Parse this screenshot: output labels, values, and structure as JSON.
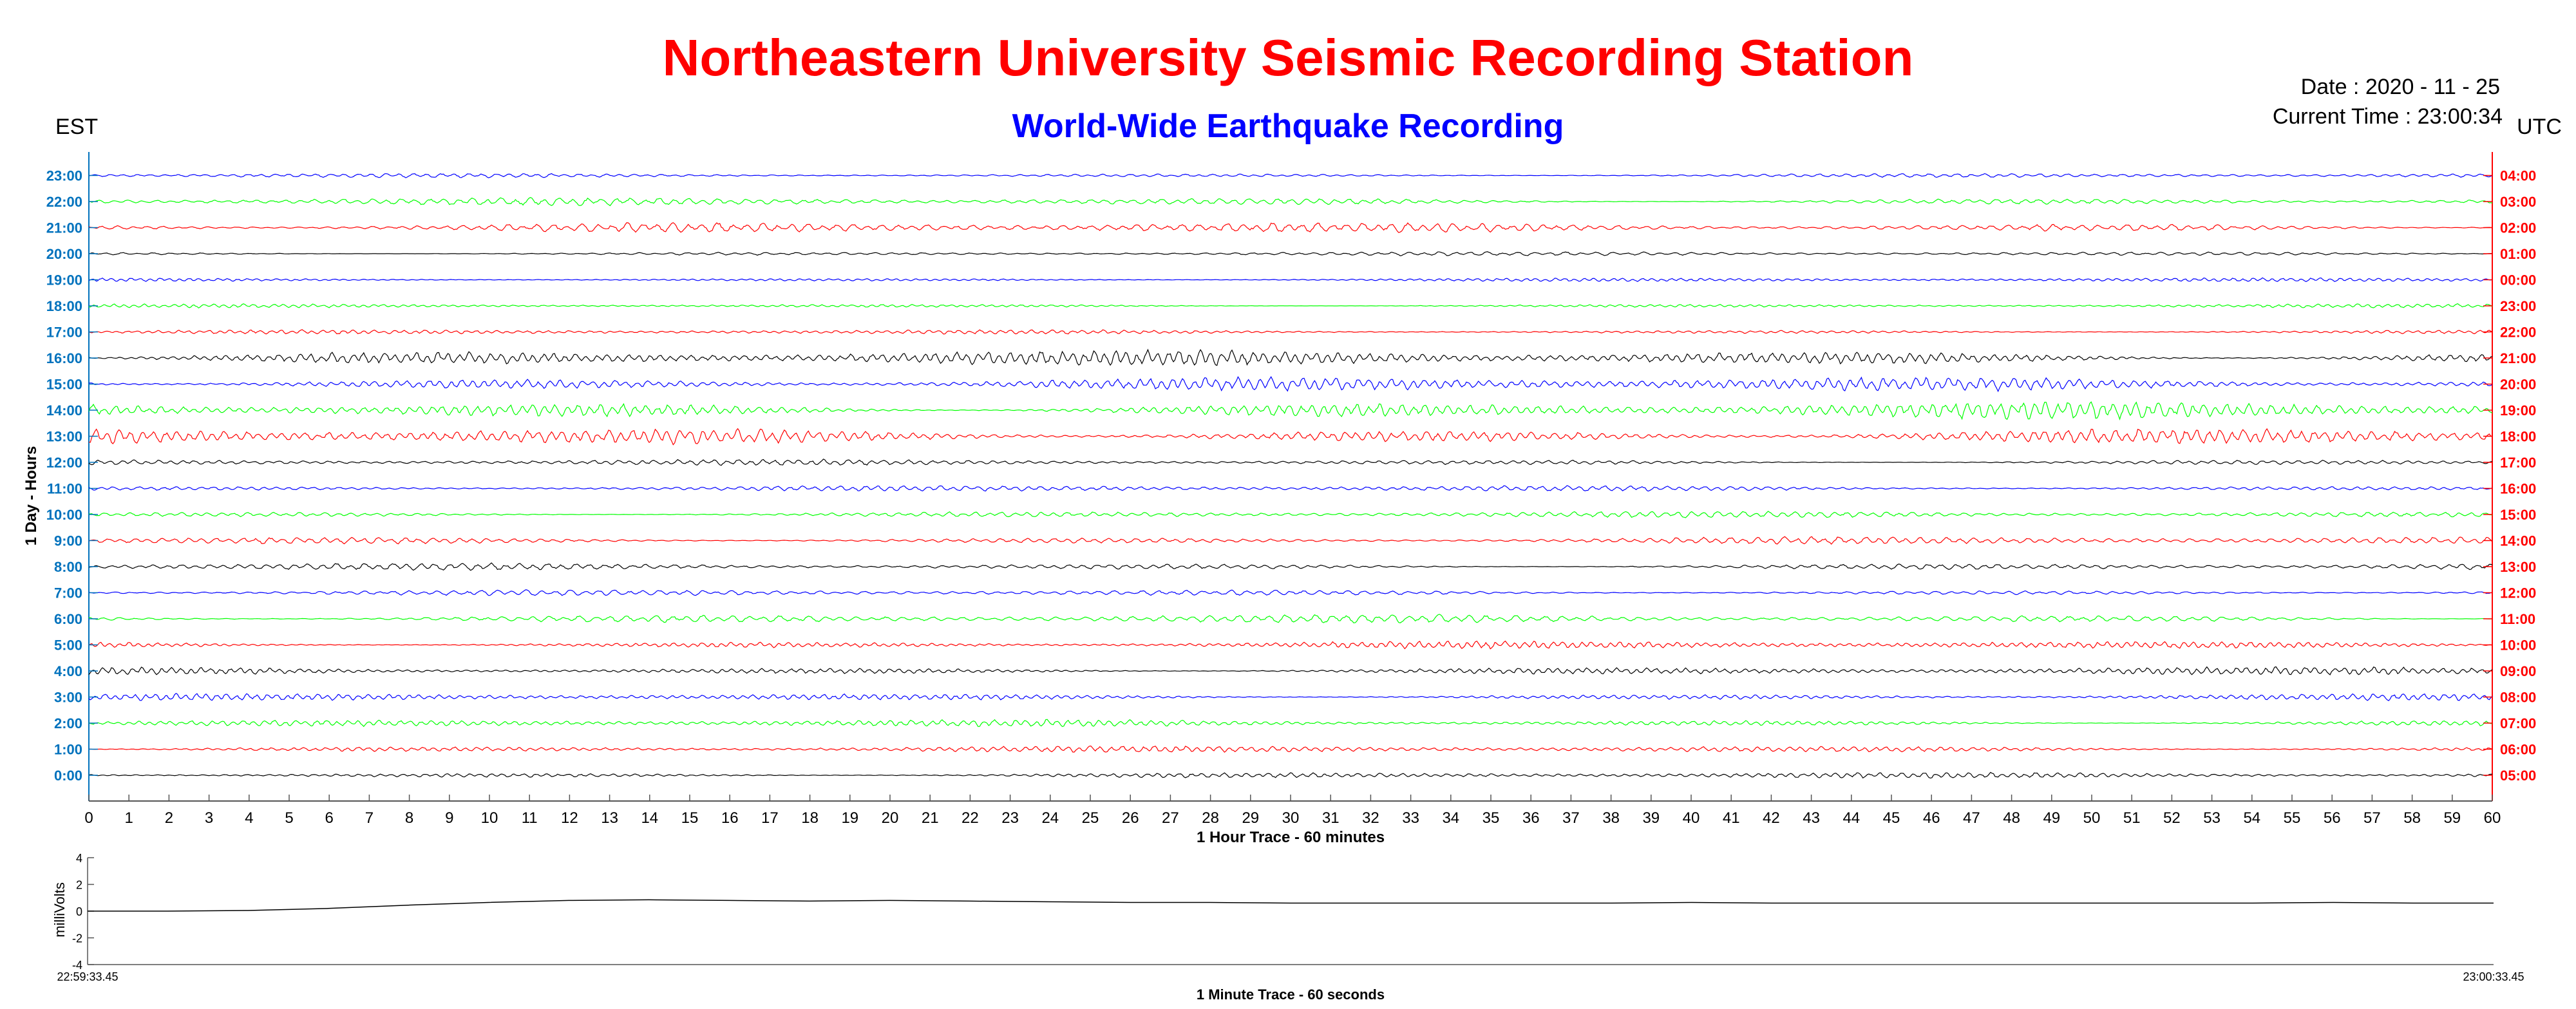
{
  "header": {
    "title": "Northeastern University Seismic Recording Station",
    "subtitle": "World-Wide Earthquake Recording",
    "date_text": "Date : 2020 - 11 - 25",
    "time_text": "Current Time : 23:00:34",
    "est_label": "EST",
    "utc_label": "UTC"
  },
  "colors": {
    "title": "#ff0000",
    "subtitle": "#0000ff",
    "est_ticks": "#0072bd",
    "utc_ticks": "#ff0000",
    "traces": [
      "#000000",
      "#ff0000",
      "#00ff00",
      "#0000ff"
    ]
  },
  "chart_data": [
    {
      "type": "line",
      "name": "helicorder-1-day",
      "ylabel": "1 Day - Hours",
      "xlabel": "1 Hour Trace - 60 minutes",
      "xlim": [
        0,
        60
      ],
      "x_ticks": [
        0,
        1,
        2,
        3,
        4,
        5,
        6,
        7,
        8,
        9,
        10,
        11,
        12,
        13,
        14,
        15,
        16,
        17,
        18,
        19,
        20,
        21,
        22,
        23,
        24,
        25,
        26,
        27,
        28,
        29,
        30,
        31,
        32,
        33,
        34,
        35,
        36,
        37,
        38,
        39,
        40,
        41,
        42,
        43,
        44,
        45,
        46,
        47,
        48,
        49,
        50,
        51,
        52,
        53,
        54,
        55,
        56,
        57,
        58,
        59,
        60
      ],
      "est_hours": [
        "0:00",
        "1:00",
        "2:00",
        "3:00",
        "4:00",
        "5:00",
        "6:00",
        "7:00",
        "8:00",
        "9:00",
        "10:00",
        "11:00",
        "12:00",
        "13:00",
        "14:00",
        "15:00",
        "16:00",
        "17:00",
        "18:00",
        "19:00",
        "20:00",
        "21:00",
        "22:00",
        "23:00"
      ],
      "utc_hours": [
        "05:00",
        "06:00",
        "07:00",
        "08:00",
        "09:00",
        "10:00",
        "11:00",
        "12:00",
        "13:00",
        "14:00",
        "15:00",
        "16:00",
        "17:00",
        "18:00",
        "19:00",
        "20:00",
        "21:00",
        "22:00",
        "23:00",
        "00:00",
        "01:00",
        "02:00",
        "03:00",
        "04:00"
      ],
      "trace_rows": 24,
      "trace_color_cycle": [
        "black",
        "red",
        "green",
        "blue"
      ],
      "relative_amplitude": [
        0.45,
        0.5,
        0.55,
        0.55,
        0.6,
        0.6,
        0.65,
        0.45,
        0.55,
        0.6,
        0.5,
        0.45,
        0.45,
        1.3,
        1.4,
        1.1,
        1.2,
        0.35,
        0.3,
        0.3,
        0.3,
        0.8,
        0.6,
        0.35
      ],
      "grid": false
    },
    {
      "type": "line",
      "name": "1-minute-trace",
      "ylabel": "milliVolts",
      "xlabel": "1 Minute Trace  - 60 seconds",
      "ylim": [
        -4,
        4
      ],
      "y_ticks": [
        -4,
        -2,
        0,
        2,
        4
      ],
      "x_start_label": "22:59:33.45",
      "x_end_label": "23:00:33.45",
      "x": [
        0,
        2,
        4,
        6,
        8,
        10,
        12,
        14,
        16,
        18,
        20,
        22,
        24,
        26,
        28,
        30,
        32,
        34,
        36,
        38,
        40,
        42,
        44,
        46,
        48,
        50,
        52,
        54,
        56,
        58,
        60
      ],
      "values": [
        0.0,
        0.0,
        0.05,
        0.2,
        0.45,
        0.65,
        0.8,
        0.85,
        0.8,
        0.75,
        0.8,
        0.75,
        0.7,
        0.65,
        0.65,
        0.6,
        0.6,
        0.6,
        0.6,
        0.6,
        0.65,
        0.6,
        0.6,
        0.6,
        0.6,
        0.6,
        0.6,
        0.6,
        0.65,
        0.6,
        0.6
      ]
    }
  ]
}
